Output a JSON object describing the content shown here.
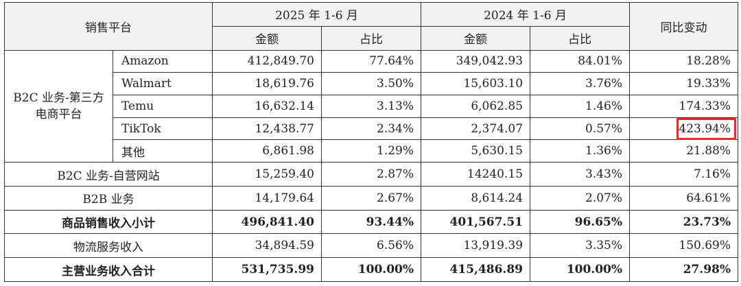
{
  "headers": {
    "platform": "销售平台",
    "period_2025": "2025 年 1-6 月",
    "period_2024": "2024 年 1-6 月",
    "yoy": "同比变动",
    "amount": "金额",
    "share": "占比"
  },
  "group_b2c_third": "B2C 业务-第三方电商平台",
  "rows": [
    {
      "name": "Amazon",
      "a2025": "412,849.70",
      "s2025": "77.64%",
      "a2024": "349,042.93",
      "s2024": "84.01%",
      "yoy": "18.28%"
    },
    {
      "name": "Walmart",
      "a2025": "18,619.76",
      "s2025": "3.50%",
      "a2024": "15,603.10",
      "s2024": "3.76%",
      "yoy": "19.33%"
    },
    {
      "name": "Temu",
      "a2025": "16,632.14",
      "s2025": "3.13%",
      "a2024": "6,062.85",
      "s2024": "1.46%",
      "yoy": "174.33%"
    },
    {
      "name": "TikTok",
      "a2025": "12,438.77",
      "s2025": "2.34%",
      "a2024": "2,374.07",
      "s2024": "0.57%",
      "yoy": "423.94%"
    },
    {
      "name": "其他",
      "a2025": "6,861.98",
      "s2025": "1.29%",
      "a2024": "5,630.15",
      "s2024": "1.36%",
      "yoy": "21.88%"
    },
    {
      "name": "B2C 业务-自营网站",
      "a2025": "15,259.40",
      "s2025": "2.87%",
      "a2024": "14240.15",
      "s2024": "3.43%",
      "yoy": "7.16%"
    },
    {
      "name": "B2B 业务",
      "a2025": "14,179.64",
      "s2025": "2.67%",
      "a2024": "8,614.24",
      "s2024": "2.07%",
      "yoy": "64.61%"
    },
    {
      "name": "商品销售收入小计",
      "a2025": "496,841.40",
      "s2025": "93.44%",
      "a2024": "401,567.51",
      "s2024": "96.65%",
      "yoy": "23.73%"
    },
    {
      "name": "物流服务收入",
      "a2025": "34,894.59",
      "s2025": "6.56%",
      "a2024": "13,919.39",
      "s2024": "3.35%",
      "yoy": "150.69%"
    },
    {
      "name": "主营业务收入合计",
      "a2025": "531,735.99",
      "s2025": "100.00%",
      "a2024": "415,486.89",
      "s2024": "100.00%",
      "yoy": "27.98%"
    }
  ],
  "highlight_color": "#e52b2b"
}
